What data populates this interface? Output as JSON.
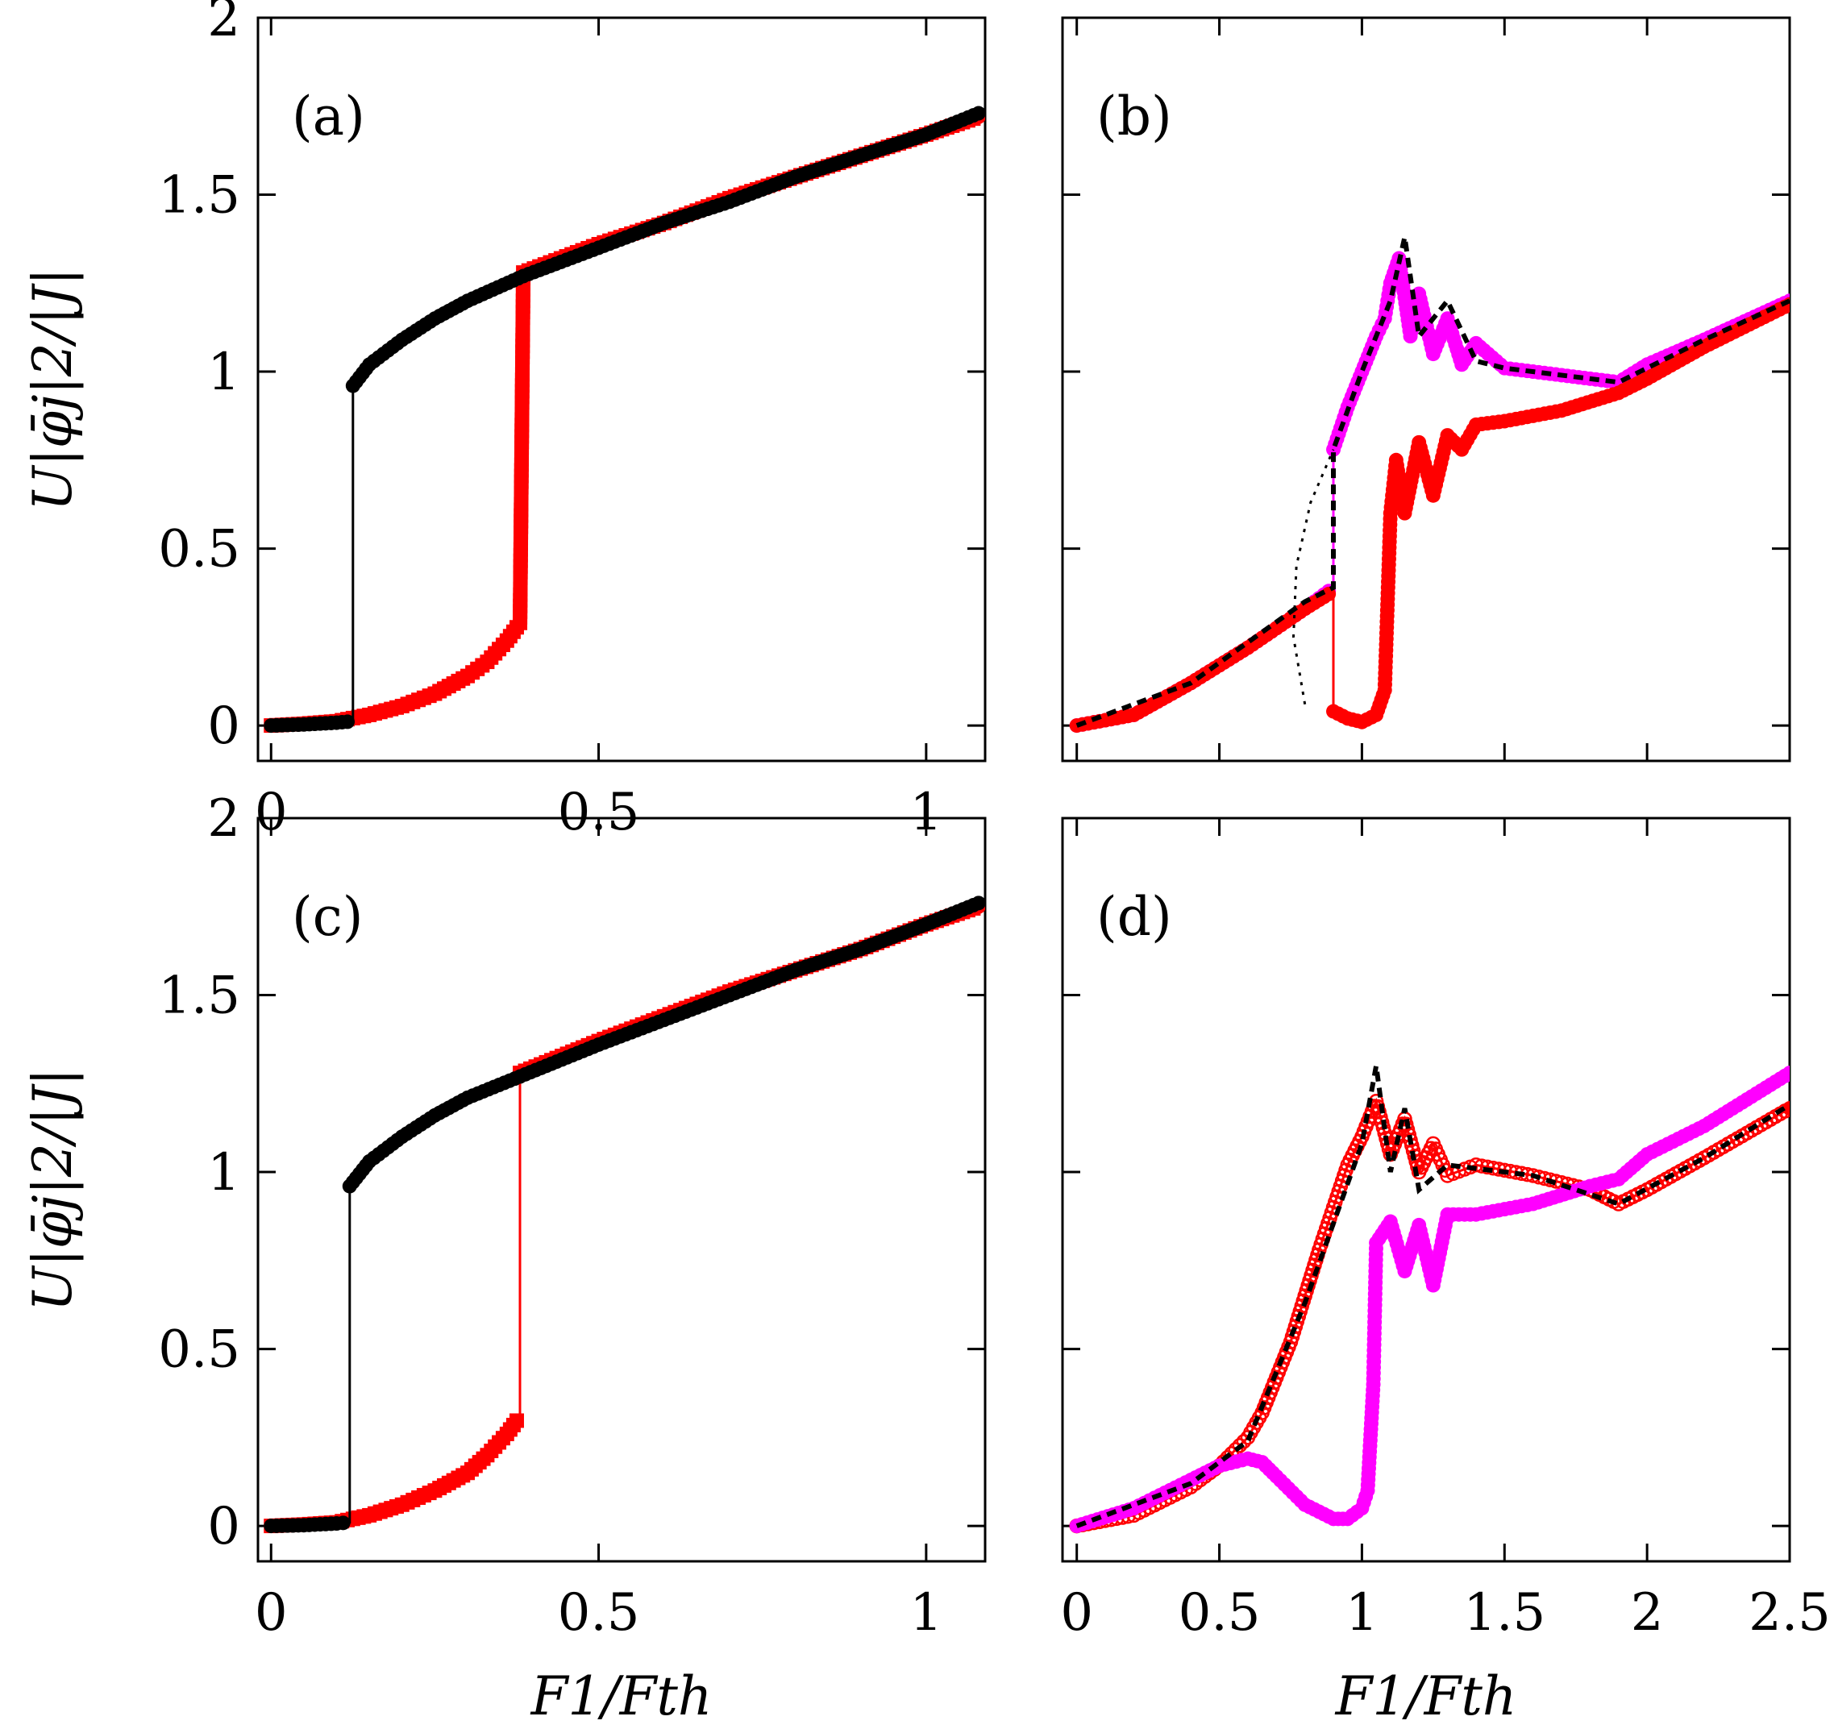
{
  "chart_data": [
    {
      "panel": "(a)",
      "type": "line",
      "xlim": [
        -0.02,
        1.09
      ],
      "ylim": [
        -0.1,
        2.0
      ],
      "xticks": [
        "0",
        "0.5",
        "1"
      ],
      "xtick_values": [
        0,
        0.5,
        1
      ],
      "yticks": [
        "0",
        "0.5",
        "1",
        "1.5",
        "2"
      ],
      "ytick_values": [
        0,
        0.5,
        1,
        1.5,
        2
      ],
      "ylabel": "U|φ̄j|2/|J|",
      "xlabel": "",
      "series": [
        {
          "name": "red",
          "color": "#ff0000",
          "marker": "square",
          "points": [
            [
              0,
              0
            ],
            [
              0.05,
              0.005
            ],
            [
              0.1,
              0.012
            ],
            [
              0.15,
              0.03
            ],
            [
              0.2,
              0.055
            ],
            [
              0.25,
              0.09
            ],
            [
              0.3,
              0.14
            ],
            [
              0.33,
              0.18
            ],
            [
              0.36,
              0.24
            ],
            [
              0.38,
              0.29
            ],
            [
              0.385,
              1.28
            ],
            [
              0.5,
              1.36
            ],
            [
              0.6,
              1.42
            ],
            [
              0.7,
              1.49
            ],
            [
              0.8,
              1.55
            ],
            [
              0.9,
              1.61
            ],
            [
              1.0,
              1.67
            ],
            [
              1.08,
              1.72
            ]
          ]
        },
        {
          "name": "black",
          "color": "#000000",
          "marker": "circle",
          "points": [
            [
              0,
              0
            ],
            [
              0.05,
              0.003
            ],
            [
              0.1,
              0.008
            ],
            [
              0.125,
              0.012
            ],
            [
              0.125,
              0.96
            ],
            [
              0.15,
              1.02
            ],
            [
              0.2,
              1.09
            ],
            [
              0.25,
              1.15
            ],
            [
              0.3,
              1.2
            ],
            [
              0.385,
              1.27
            ],
            [
              0.5,
              1.35
            ],
            [
              0.6,
              1.42
            ],
            [
              0.7,
              1.48
            ],
            [
              0.8,
              1.55
            ],
            [
              0.9,
              1.61
            ],
            [
              1.0,
              1.67
            ],
            [
              1.08,
              1.73
            ]
          ]
        }
      ]
    },
    {
      "panel": "(b)",
      "type": "line",
      "xlim": [
        -0.05,
        2.5
      ],
      "ylim": [
        -0.1,
        2.0
      ],
      "xticks": [],
      "xtick_values": [
        0,
        0.5,
        1,
        1.5,
        2,
        2.5
      ],
      "yticks": [],
      "ytick_values": [
        0,
        0.5,
        1,
        1.5,
        2
      ],
      "ylabel": "",
      "xlabel": "",
      "series": [
        {
          "name": "magenta",
          "color": "#ff00ff",
          "marker": "circle",
          "points": [
            [
              0,
              0
            ],
            [
              0.2,
              0.03
            ],
            [
              0.4,
              0.12
            ],
            [
              0.6,
              0.22
            ],
            [
              0.8,
              0.33
            ],
            [
              0.9,
              0.39
            ],
            [
              0.9,
              0.78
            ],
            [
              0.95,
              0.9
            ],
            [
              1.0,
              1.0
            ],
            [
              1.05,
              1.1
            ],
            [
              1.08,
              1.15
            ],
            [
              1.1,
              1.25
            ],
            [
              1.13,
              1.32
            ],
            [
              1.17,
              1.1
            ],
            [
              1.2,
              1.22
            ],
            [
              1.25,
              1.05
            ],
            [
              1.3,
              1.15
            ],
            [
              1.35,
              1.02
            ],
            [
              1.4,
              1.08
            ],
            [
              1.5,
              1.01
            ],
            [
              1.7,
              0.99
            ],
            [
              1.9,
              0.97
            ],
            [
              2.0,
              1.02
            ],
            [
              2.2,
              1.09
            ],
            [
              2.5,
              1.2
            ]
          ]
        },
        {
          "name": "red",
          "color": "#ff0000",
          "marker": "circle",
          "points": [
            [
              0,
              0
            ],
            [
              0.2,
              0.03
            ],
            [
              0.4,
              0.12
            ],
            [
              0.6,
              0.22
            ],
            [
              0.8,
              0.33
            ],
            [
              0.9,
              0.38
            ],
            [
              0.9,
              0.04
            ],
            [
              0.95,
              0.02
            ],
            [
              1.0,
              0.01
            ],
            [
              1.05,
              0.03
            ],
            [
              1.08,
              0.1
            ],
            [
              1.1,
              0.6
            ],
            [
              1.12,
              0.75
            ],
            [
              1.15,
              0.6
            ],
            [
              1.2,
              0.8
            ],
            [
              1.25,
              0.65
            ],
            [
              1.3,
              0.82
            ],
            [
              1.35,
              0.78
            ],
            [
              1.4,
              0.85
            ],
            [
              1.5,
              0.86
            ],
            [
              1.7,
              0.89
            ],
            [
              1.9,
              0.94
            ],
            [
              2.0,
              0.98
            ],
            [
              2.2,
              1.07
            ],
            [
              2.5,
              1.19
            ]
          ]
        },
        {
          "name": "black-dashed",
          "color": "#000000",
          "marker": "none",
          "dashed": true,
          "points": [
            [
              0,
              0
            ],
            [
              0.4,
              0.12
            ],
            [
              0.8,
              0.35
            ],
            [
              0.9,
              0.39
            ],
            [
              0.9,
              0.78
            ],
            [
              1.0,
              1.0
            ],
            [
              1.1,
              1.2
            ],
            [
              1.15,
              1.38
            ],
            [
              1.2,
              1.1
            ],
            [
              1.3,
              1.2
            ],
            [
              1.4,
              1.03
            ],
            [
              1.5,
              1.01
            ],
            [
              1.9,
              0.97
            ],
            [
              2.2,
              1.09
            ],
            [
              2.5,
              1.2
            ]
          ]
        },
        {
          "name": "black-dotted",
          "color": "#000000",
          "marker": "none",
          "dotted": true,
          "points": [
            [
              0.8,
              0.06
            ],
            [
              0.76,
              0.25
            ],
            [
              0.77,
              0.45
            ],
            [
              0.82,
              0.63
            ],
            [
              0.9,
              0.78
            ]
          ]
        }
      ]
    },
    {
      "panel": "(c)",
      "type": "line",
      "xlim": [
        -0.02,
        1.09
      ],
      "ylim": [
        -0.1,
        2.0
      ],
      "xticks": [
        "0",
        "0.5",
        "1"
      ],
      "xtick_values": [
        0,
        0.5,
        1
      ],
      "yticks": [
        "0",
        "0.5",
        "1",
        "1.5",
        "2"
      ],
      "ytick_values": [
        0,
        0.5,
        1,
        1.5,
        2
      ],
      "ylabel": "U|φ̄j|2/|J|",
      "xlabel": "F1/Fth",
      "series": [
        {
          "name": "red",
          "color": "#ff0000",
          "marker": "square",
          "points": [
            [
              0,
              0
            ],
            [
              0.05,
              0.004
            ],
            [
              0.1,
              0.01
            ],
            [
              0.15,
              0.03
            ],
            [
              0.2,
              0.06
            ],
            [
              0.25,
              0.1
            ],
            [
              0.3,
              0.15
            ],
            [
              0.33,
              0.2
            ],
            [
              0.36,
              0.26
            ],
            [
              0.38,
              0.31
            ],
            [
              0.38,
              1.28
            ],
            [
              0.5,
              1.37
            ],
            [
              0.6,
              1.44
            ],
            [
              0.7,
              1.51
            ],
            [
              0.8,
              1.57
            ],
            [
              0.9,
              1.63
            ],
            [
              1.0,
              1.7
            ],
            [
              1.08,
              1.75
            ]
          ]
        },
        {
          "name": "black",
          "color": "#000000",
          "marker": "circle",
          "points": [
            [
              0,
              0
            ],
            [
              0.05,
              0.002
            ],
            [
              0.1,
              0.007
            ],
            [
              0.12,
              0.01
            ],
            [
              0.12,
              0.96
            ],
            [
              0.15,
              1.03
            ],
            [
              0.2,
              1.1
            ],
            [
              0.25,
              1.16
            ],
            [
              0.3,
              1.21
            ],
            [
              0.38,
              1.27
            ],
            [
              0.5,
              1.36
            ],
            [
              0.6,
              1.43
            ],
            [
              0.7,
              1.5
            ],
            [
              0.8,
              1.57
            ],
            [
              0.9,
              1.63
            ],
            [
              1.0,
              1.7
            ],
            [
              1.08,
              1.76
            ]
          ]
        }
      ]
    },
    {
      "panel": "(d)",
      "type": "line",
      "xlim": [
        -0.05,
        2.5
      ],
      "ylim": [
        -0.1,
        2.0
      ],
      "xticks": [
        "0",
        "0.5",
        "1",
        "1.5",
        "2",
        "2.5"
      ],
      "xtick_values": [
        0,
        0.5,
        1,
        1.5,
        2,
        2.5
      ],
      "yticks": [],
      "ytick_values": [
        0,
        0.5,
        1,
        1.5,
        2
      ],
      "ylabel": "",
      "xlabel": "F1/Fth",
      "series": [
        {
          "name": "red",
          "color": "#ff0000",
          "marker": "open-circle",
          "points": [
            [
              0,
              0
            ],
            [
              0.2,
              0.03
            ],
            [
              0.4,
              0.11
            ],
            [
              0.5,
              0.17
            ],
            [
              0.6,
              0.25
            ],
            [
              0.65,
              0.32
            ],
            [
              0.7,
              0.42
            ],
            [
              0.75,
              0.52
            ],
            [
              0.8,
              0.65
            ],
            [
              0.85,
              0.78
            ],
            [
              0.9,
              0.9
            ],
            [
              0.95,
              1.02
            ],
            [
              1.0,
              1.1
            ],
            [
              1.05,
              1.2
            ],
            [
              1.1,
              1.05
            ],
            [
              1.15,
              1.15
            ],
            [
              1.2,
              1.0
            ],
            [
              1.25,
              1.08
            ],
            [
              1.3,
              0.99
            ],
            [
              1.4,
              1.02
            ],
            [
              1.6,
              0.99
            ],
            [
              1.8,
              0.95
            ],
            [
              1.9,
              0.91
            ],
            [
              2.0,
              0.95
            ],
            [
              2.2,
              1.04
            ],
            [
              2.5,
              1.18
            ]
          ]
        },
        {
          "name": "magenta",
          "color": "#ff00ff",
          "marker": "circle",
          "points": [
            [
              0,
              0
            ],
            [
              0.2,
              0.05
            ],
            [
              0.4,
              0.13
            ],
            [
              0.5,
              0.17
            ],
            [
              0.6,
              0.19
            ],
            [
              0.65,
              0.18
            ],
            [
              0.7,
              0.14
            ],
            [
              0.8,
              0.06
            ],
            [
              0.9,
              0.02
            ],
            [
              0.95,
              0.02
            ],
            [
              1.0,
              0.05
            ],
            [
              1.02,
              0.1
            ],
            [
              1.04,
              0.4
            ],
            [
              1.05,
              0.8
            ],
            [
              1.1,
              0.86
            ],
            [
              1.15,
              0.72
            ],
            [
              1.2,
              0.85
            ],
            [
              1.25,
              0.68
            ],
            [
              1.3,
              0.88
            ],
            [
              1.4,
              0.88
            ],
            [
              1.6,
              0.91
            ],
            [
              1.8,
              0.96
            ],
            [
              1.9,
              0.98
            ],
            [
              2.0,
              1.05
            ],
            [
              2.2,
              1.13
            ],
            [
              2.5,
              1.28
            ]
          ]
        },
        {
          "name": "black-dashed",
          "color": "#000000",
          "marker": "none",
          "dashed": true,
          "points": [
            [
              0,
              0
            ],
            [
              0.4,
              0.12
            ],
            [
              0.6,
              0.24
            ],
            [
              0.8,
              0.63
            ],
            [
              1.0,
              1.08
            ],
            [
              1.05,
              1.3
            ],
            [
              1.1,
              1.0
            ],
            [
              1.15,
              1.18
            ],
            [
              1.2,
              0.95
            ],
            [
              1.3,
              1.02
            ],
            [
              1.6,
              0.99
            ],
            [
              1.9,
              0.91
            ],
            [
              2.2,
              1.04
            ],
            [
              2.5,
              1.19
            ]
          ]
        }
      ]
    }
  ]
}
